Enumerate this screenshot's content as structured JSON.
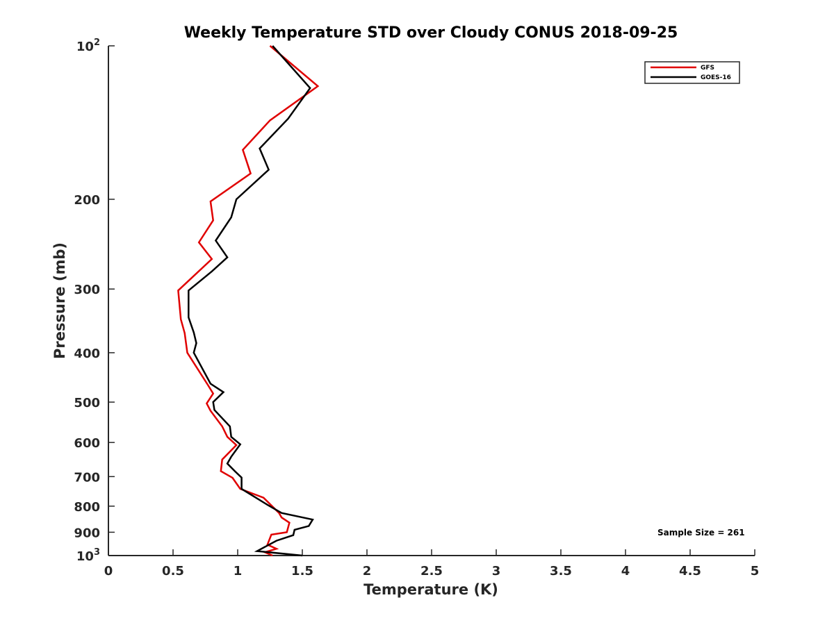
{
  "chart_data": {
    "type": "line",
    "title": "Weekly Temperature STD over Cloudy CONUS 2018-09-25",
    "xlabel": "Temperature (K)",
    "ylabel": "Pressure (mb)",
    "xlim": [
      0,
      5
    ],
    "ylim": [
      100,
      1000
    ],
    "y_scale": "log",
    "y_reversed": true,
    "grid": false,
    "legend_position": "top-right",
    "x_ticks": [
      {
        "value": 0,
        "label": "0"
      },
      {
        "value": 0.5,
        "label": "0.5"
      },
      {
        "value": 1,
        "label": "1"
      },
      {
        "value": 1.5,
        "label": "1.5"
      },
      {
        "value": 2,
        "label": "2"
      },
      {
        "value": 2.5,
        "label": "2.5"
      },
      {
        "value": 3,
        "label": "3"
      },
      {
        "value": 3.5,
        "label": "3.5"
      },
      {
        "value": 4,
        "label": "4"
      },
      {
        "value": 4.5,
        "label": "4.5"
      },
      {
        "value": 5,
        "label": "5"
      }
    ],
    "y_ticks": [
      {
        "value": 100,
        "base": "10",
        "exp": "2"
      },
      {
        "value": 200,
        "base": "200",
        "exp": ""
      },
      {
        "value": 300,
        "base": "300",
        "exp": ""
      },
      {
        "value": 400,
        "base": "400",
        "exp": ""
      },
      {
        "value": 500,
        "base": "500",
        "exp": ""
      },
      {
        "value": 600,
        "base": "600",
        "exp": ""
      },
      {
        "value": 700,
        "base": "700",
        "exp": ""
      },
      {
        "value": 800,
        "base": "800",
        "exp": ""
      },
      {
        "value": 900,
        "base": "900",
        "exp": ""
      },
      {
        "value": 1000,
        "base": "10",
        "exp": "3"
      }
    ],
    "series": [
      {
        "name": "GFS",
        "color": "#e00000",
        "points": [
          [
            1.25,
            100
          ],
          [
            1.62,
            120
          ],
          [
            1.25,
            140
          ],
          [
            1.04,
            160
          ],
          [
            1.1,
            178
          ],
          [
            0.79,
            202
          ],
          [
            0.81,
            220
          ],
          [
            0.7,
            243
          ],
          [
            0.8,
            262
          ],
          [
            0.54,
            302
          ],
          [
            0.56,
            344
          ],
          [
            0.59,
            366
          ],
          [
            0.61,
            400
          ],
          [
            0.77,
            463
          ],
          [
            0.81,
            481
          ],
          [
            0.76,
            503
          ],
          [
            0.79,
            520
          ],
          [
            0.88,
            558
          ],
          [
            0.92,
            585
          ],
          [
            0.99,
            607
          ],
          [
            0.88,
            648
          ],
          [
            0.87,
            683
          ],
          [
            0.96,
            704
          ],
          [
            1.02,
            740
          ],
          [
            1.2,
            770
          ],
          [
            1.32,
            825
          ],
          [
            1.34,
            842
          ],
          [
            1.4,
            862
          ],
          [
            1.38,
            900
          ],
          [
            1.26,
            910
          ],
          [
            1.23,
            952
          ],
          [
            1.3,
            970
          ],
          [
            1.21,
            985
          ],
          [
            1.27,
            1000
          ]
        ]
      },
      {
        "name": "GOES-16",
        "color": "#000000",
        "points": [
          [
            1.27,
            100
          ],
          [
            1.56,
            121
          ],
          [
            1.39,
            139
          ],
          [
            1.17,
            159
          ],
          [
            1.24,
            175
          ],
          [
            0.99,
            200
          ],
          [
            0.95,
            217
          ],
          [
            0.83,
            241
          ],
          [
            0.92,
            260
          ],
          [
            0.8,
            277
          ],
          [
            0.62,
            302
          ],
          [
            0.62,
            341
          ],
          [
            0.66,
            365
          ],
          [
            0.68,
            383
          ],
          [
            0.66,
            400
          ],
          [
            0.79,
            460
          ],
          [
            0.89,
            478
          ],
          [
            0.81,
            500
          ],
          [
            0.82,
            518
          ],
          [
            0.94,
            558
          ],
          [
            0.95,
            585
          ],
          [
            1.02,
            605
          ],
          [
            0.95,
            640
          ],
          [
            0.92,
            660
          ],
          [
            0.98,
            684
          ],
          [
            1.03,
            703
          ],
          [
            1.03,
            740
          ],
          [
            1.23,
            795
          ],
          [
            1.34,
            825
          ],
          [
            1.58,
            850
          ],
          [
            1.55,
            875
          ],
          [
            1.44,
            890
          ],
          [
            1.43,
            912
          ],
          [
            1.3,
            935
          ],
          [
            1.15,
            980
          ],
          [
            1.5,
            1000
          ]
        ]
      }
    ],
    "annotation": "Sample Size = 261"
  }
}
